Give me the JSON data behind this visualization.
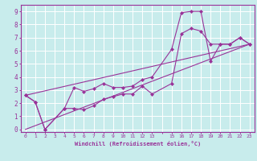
{
  "xlabel": "Windchill (Refroidissement éolien,°C)",
  "bg_color": "#c8ecec",
  "grid_color": "#aadddd",
  "line_color": "#993399",
  "xlim": [
    -0.5,
    23.5
  ],
  "ylim": [
    -0.2,
    9.5
  ],
  "xticks": [
    0,
    1,
    2,
    3,
    4,
    5,
    6,
    7,
    8,
    9,
    10,
    11,
    12,
    13,
    15,
    16,
    17,
    18,
    19,
    20,
    21,
    22,
    23
  ],
  "yticks": [
    0,
    1,
    2,
    3,
    4,
    5,
    6,
    7,
    8,
    9
  ],
  "series": [
    {
      "x": [
        0,
        1,
        2,
        4,
        5,
        6,
        7,
        8,
        9,
        10,
        11,
        12,
        13,
        15,
        16,
        17,
        18,
        19,
        20,
        21,
        22,
        23
      ],
      "y": [
        2.6,
        2.1,
        0.0,
        1.6,
        3.2,
        2.9,
        3.1,
        3.5,
        3.2,
        3.2,
        3.3,
        3.8,
        4.0,
        6.1,
        8.9,
        9.0,
        9.0,
        5.2,
        6.5,
        6.5,
        7.0,
        6.5
      ],
      "has_markers": true
    },
    {
      "x": [
        0,
        1,
        2,
        4,
        5,
        6,
        7,
        8,
        9,
        10,
        11,
        12,
        13,
        15,
        16,
        17,
        18,
        19,
        20,
        21,
        22,
        23
      ],
      "y": [
        2.6,
        2.1,
        0.0,
        1.6,
        1.6,
        1.5,
        1.8,
        2.3,
        2.5,
        2.7,
        2.7,
        3.3,
        2.7,
        3.5,
        7.3,
        7.7,
        7.5,
        6.5,
        6.5,
        6.5,
        7.0,
        6.5
      ],
      "has_markers": true
    },
    {
      "x": [
        0,
        23
      ],
      "y": [
        0.0,
        6.5
      ],
      "has_markers": false
    },
    {
      "x": [
        0,
        23
      ],
      "y": [
        2.6,
        6.5
      ],
      "has_markers": false
    }
  ]
}
